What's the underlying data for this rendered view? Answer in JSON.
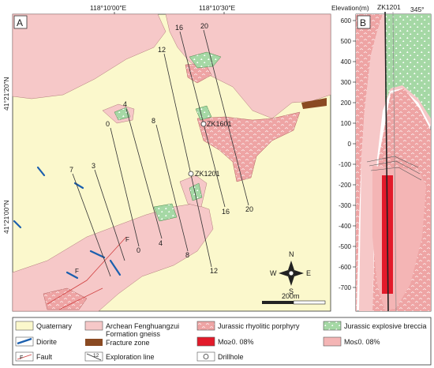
{
  "map": {
    "panel_a_label": "A",
    "coords": {
      "lon_left": "118°10′00″E",
      "lon_right": "118°10′30″E",
      "lat_top": "41°21′20″N",
      "lat_bottom": "41°21′00″N"
    },
    "exploration_lines": [
      "20",
      "16",
      "12",
      "8",
      "4",
      "0",
      "3",
      "7"
    ],
    "drillholes": [
      "ZK1601",
      "ZK1201"
    ],
    "compass": {
      "n": "N",
      "s": "S",
      "e": "E",
      "w": "W"
    },
    "scale_label": "200m"
  },
  "section": {
    "panel_b_label": "B",
    "elevation_title": "Elevation(m)",
    "drillhole": "ZK1201",
    "azimuth": "345°",
    "ticks": [
      "600",
      "500",
      "400",
      "300",
      "200",
      "100",
      "0",
      "-100",
      "-200",
      "-300",
      "-400",
      "-500",
      "-600",
      "-700"
    ]
  },
  "legend": {
    "quaternary": "Quaternary",
    "archean_line1": "Archean Fenghuangzui",
    "archean_line2": "Formation gneiss",
    "rhyolitic": "Jurassic rhyolitic porphyry",
    "breccia": "Jurassic explosive breccia",
    "diorite": "Diorite",
    "fracture_zone": "Fracture zone",
    "mo_high": "Mo≥0. 08%",
    "mo_low": "Mo≤0. 08%",
    "fault": "Fault",
    "exploration_line": "Exploration line",
    "drillhole": "Drillhole",
    "fault_symbol": "F",
    "expl_symbol": "12"
  },
  "colors": {
    "quaternary": "#fbf8cc",
    "archean": "#f6c8c8",
    "rhyolitic": "#eea4a4",
    "breccia": "#a5d8a5",
    "diorite": "#1b5fae",
    "fracture": "#8a4a22",
    "mo_high": "#e21a2a",
    "mo_low": "#f4b5b5"
  }
}
